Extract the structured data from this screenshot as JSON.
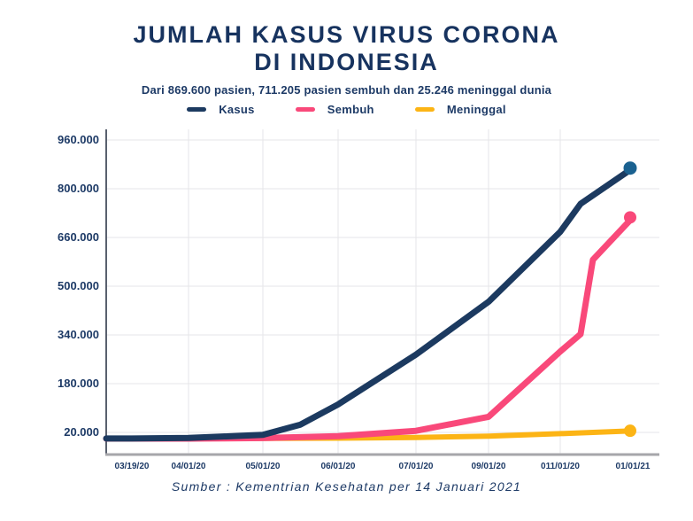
{
  "header": {
    "title_line1": "JUMLAH KASUS VIRUS CORONA",
    "title_line2": "DI INDONESIA",
    "subtitle": "Dari 869.600 pasien, 711.205 pasien sembuh dan 25.246 meninggal dunia"
  },
  "legend": [
    {
      "label": "Kasus",
      "color": "#1c3a60"
    },
    {
      "label": "Sembuh",
      "color": "#f9497a"
    },
    {
      "label": "Meninggal",
      "color": "#fcb415"
    }
  ],
  "footer": {
    "source": "Sumber : Kementrian Kesehatan per 14 Januari 2021"
  },
  "colors": {
    "text_navy": "#1d3a66",
    "line_navy": "#1c3a60",
    "navy_endpoint_dot": "#1a6190",
    "pink": "#f9497a",
    "yellow": "#fcb415",
    "gridline": "#e5e5e8",
    "x_axis": "#a6a6aa",
    "y_axis": "#59606e"
  },
  "chart_data": {
    "type": "line",
    "title": "JUMLAH KASUS VIRUS CORONA DI INDONESIA",
    "xlabel": "",
    "ylabel": "",
    "grid": true,
    "legend_position": "top",
    "x_tick_labels": [
      "03/19/20",
      "04/01/20",
      "05/01/20",
      "06/01/20",
      "07/01/20",
      "09/01/20",
      "011/01/20",
      "01/01/21"
    ],
    "y_tick_labels": [
      "960.000",
      "800.000",
      "660.000",
      "500.000",
      "340.000",
      "180.000",
      "20.000"
    ],
    "y_axis_anchor_values": {
      "bottom_label_value": 20000,
      "top_label_value": 960000
    },
    "series": [
      {
        "name": "Kasus",
        "color": "#1c3a60",
        "dot_color": "#1a6190",
        "final_value": 869600,
        "points": [
          [
            0,
            300
          ],
          [
            1,
            2000
          ],
          [
            2,
            12000
          ],
          [
            2.5,
            45000
          ],
          [
            3,
            110000
          ],
          [
            4,
            270000
          ],
          [
            5,
            440000
          ],
          [
            6,
            665000
          ],
          [
            6.28,
            755000
          ],
          [
            7,
            869600
          ]
        ]
      },
      {
        "name": "Sembuh",
        "color": "#f9497a",
        "dot_color": "#f9497a",
        "final_value": 711205,
        "points": [
          [
            0,
            2
          ],
          [
            1,
            100
          ],
          [
            2,
            1800
          ],
          [
            3,
            8000
          ],
          [
            4,
            25000
          ],
          [
            5,
            70000
          ],
          [
            6,
            280000
          ],
          [
            6.28,
            336000
          ],
          [
            6.45,
            575000
          ],
          [
            7,
            711205
          ]
        ]
      },
      {
        "name": "Meninggal",
        "color": "#fcb415",
        "dot_color": "#fcb415",
        "final_value": 25246,
        "points": [
          [
            0,
            25
          ],
          [
            1,
            160
          ],
          [
            2,
            800
          ],
          [
            3,
            1600
          ],
          [
            4,
            3500
          ],
          [
            5,
            8000
          ],
          [
            6,
            16000
          ],
          [
            7,
            25246
          ]
        ]
      }
    ]
  }
}
